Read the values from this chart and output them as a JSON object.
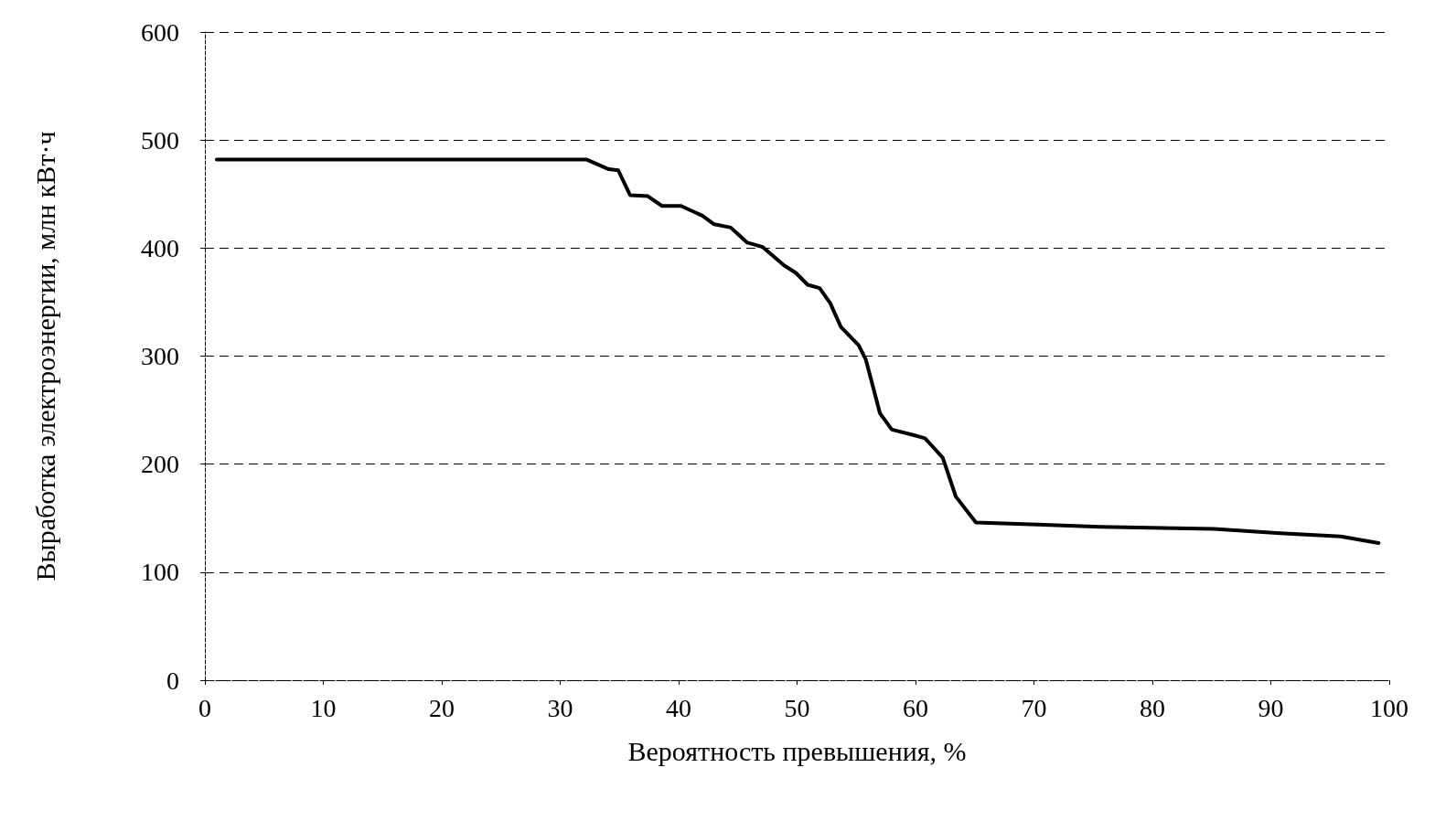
{
  "chart_data": {
    "type": "line",
    "xlabel": "Вероятность превышения, %",
    "ylabel": "Выработка электроэнергии, млн кВт·ч",
    "xlim": [
      0,
      100
    ],
    "xticks": [
      0,
      10,
      20,
      30,
      40,
      50,
      60,
      70,
      80,
      90,
      100
    ],
    "ylim": [
      0,
      600
    ],
    "yticks": [
      0,
      100,
      200,
      300,
      400,
      500,
      600
    ],
    "grid": "y",
    "marker": "none",
    "line_style": "solid",
    "series": [
      {
        "color": "#000000",
        "x": [
          1.0,
          29.3,
          32.2,
          34.1,
          34.9,
          35.9,
          37.4,
          38.6,
          40.2,
          42.0,
          43.0,
          44.4,
          45.8,
          47.1,
          48.9,
          49.9,
          50.9,
          51.9,
          52.8,
          53.7,
          55.2,
          55.8,
          57.0,
          58.0,
          59.8,
          60.8,
          62.3,
          63.4,
          65.1,
          70.3,
          75.6,
          85.2,
          90.8,
          95.9,
          99.1
        ],
        "values": [
          482,
          482,
          482,
          473,
          472,
          449,
          448,
          439,
          439,
          430,
          422,
          419,
          405,
          401,
          384,
          377,
          366,
          363,
          349,
          327,
          310,
          297,
          247,
          232,
          227,
          224,
          206,
          170,
          146,
          144,
          142,
          140,
          136,
          133,
          127
        ]
      }
    ]
  }
}
